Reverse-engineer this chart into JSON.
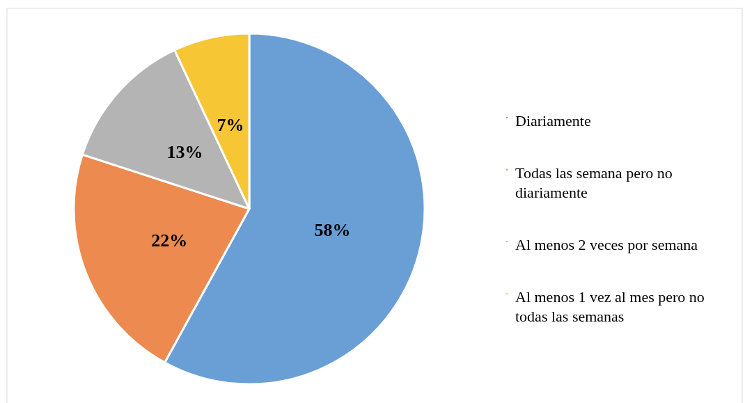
{
  "chart_data": {
    "type": "pie",
    "categories": [
      "Diariamente",
      "Todas las semana pero no diariamente",
      "Al menos 2 veces por semana",
      "Al menos 1 vez al mes pero no todas las semanas"
    ],
    "values": [
      58,
      22,
      13,
      7
    ],
    "colors": [
      "#6a9fd6",
      "#ec8a4f",
      "#b4b4b4",
      "#f7c634"
    ],
    "value_labels": [
      "58%",
      "22%",
      "13%",
      "7%"
    ],
    "legend": "right"
  }
}
